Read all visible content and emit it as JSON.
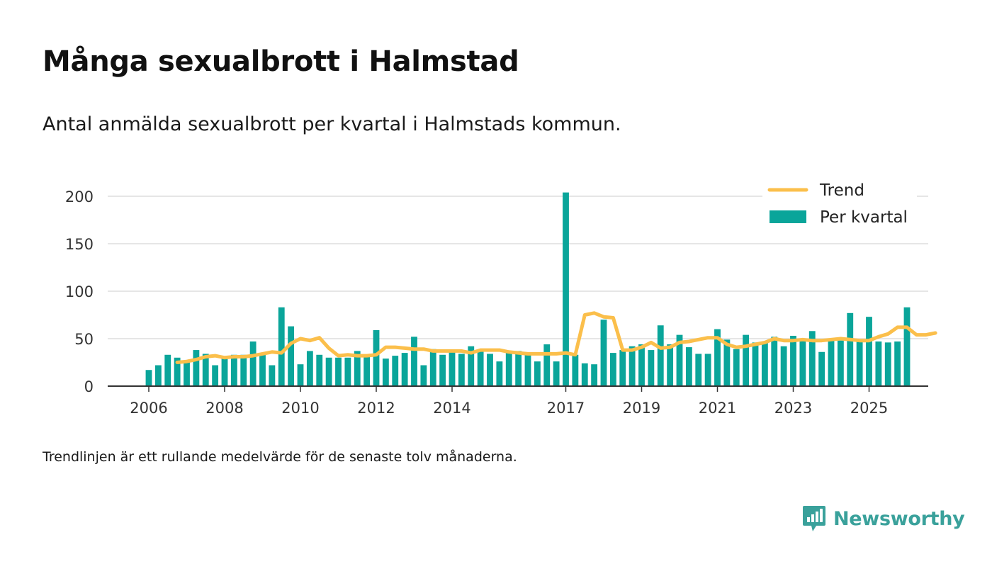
{
  "title": "Många sexualbrott i Halmstad",
  "subtitle": "Antal anmälda sexualbrott per kvartal i Halmstads kommun.",
  "footnote": "Trendlinjen är ett rullande medelvärde för de senaste tolv månaderna.",
  "brand": {
    "name": "Newsworthy",
    "color": "#3aa19b",
    "icon": "bar-chart-badge-icon"
  },
  "colors": {
    "bars": "#0aa59a",
    "trend": "#fbbf4b",
    "grid": "#dddddd",
    "axis": "#333333"
  },
  "chart_data": {
    "type": "bar",
    "title": "Många sexualbrott i Halmstad",
    "xlabel": "",
    "ylabel": "",
    "ylim": [
      0,
      200
    ],
    "yticks": [
      0,
      50,
      100,
      150,
      200
    ],
    "xticks": [
      {
        "label": "2006",
        "x": 2006.0
      },
      {
        "label": "2008",
        "x": 2008.0
      },
      {
        "label": "2010",
        "x": 2010.0
      },
      {
        "label": "2012",
        "x": 2012.0
      },
      {
        "label": "2014",
        "x": 2014.0
      },
      {
        "label": "2017",
        "x": 2017.0
      },
      {
        "label": "2019",
        "x": 2019.0
      },
      {
        "label": "2021",
        "x": 2021.0
      },
      {
        "label": "2023",
        "x": 2023.0
      },
      {
        "label": "2025",
        "x": 2025.0
      }
    ],
    "x_start": 2006.0,
    "x_step": 0.25,
    "legend_position": "top-right",
    "series": [
      {
        "name": "Per kvartal",
        "type": "bar",
        "values": [
          17,
          22,
          33,
          30,
          25,
          38,
          34,
          22,
          30,
          33,
          33,
          47,
          35,
          22,
          83,
          63,
          23,
          37,
          33,
          30,
          30,
          30,
          37,
          32,
          59,
          29,
          32,
          35,
          52,
          22,
          39,
          33,
          37,
          34,
          42,
          37,
          34,
          26,
          37,
          37,
          33,
          26,
          44,
          26,
          204,
          33,
          24,
          23,
          70,
          35,
          38,
          42,
          44,
          38,
          64,
          44,
          54,
          41,
          34,
          34,
          60,
          49,
          39,
          54,
          46,
          46,
          52,
          42,
          53,
          48,
          58,
          36,
          48,
          48,
          77,
          49,
          73,
          47,
          46,
          47,
          83
        ]
      },
      {
        "name": "Trend",
        "type": "line",
        "x_offset": 3,
        "values": [
          25,
          26,
          28,
          31,
          32,
          30,
          31,
          31,
          32,
          34,
          36,
          35,
          45,
          50,
          48,
          51,
          40,
          32,
          33,
          32,
          32,
          33,
          41,
          41,
          40,
          39,
          39,
          37,
          37,
          37,
          37,
          35,
          38,
          38,
          38,
          36,
          35,
          34,
          34,
          34,
          34,
          35,
          33,
          75,
          77,
          73,
          72,
          38,
          38,
          41,
          46,
          40,
          41,
          46,
          47,
          49,
          51,
          51,
          44,
          41,
          42,
          44,
          46,
          50,
          48,
          48,
          49,
          48,
          48,
          49,
          50,
          49,
          48,
          48,
          52,
          55,
          62,
          62,
          54,
          54,
          56
        ]
      }
    ]
  }
}
